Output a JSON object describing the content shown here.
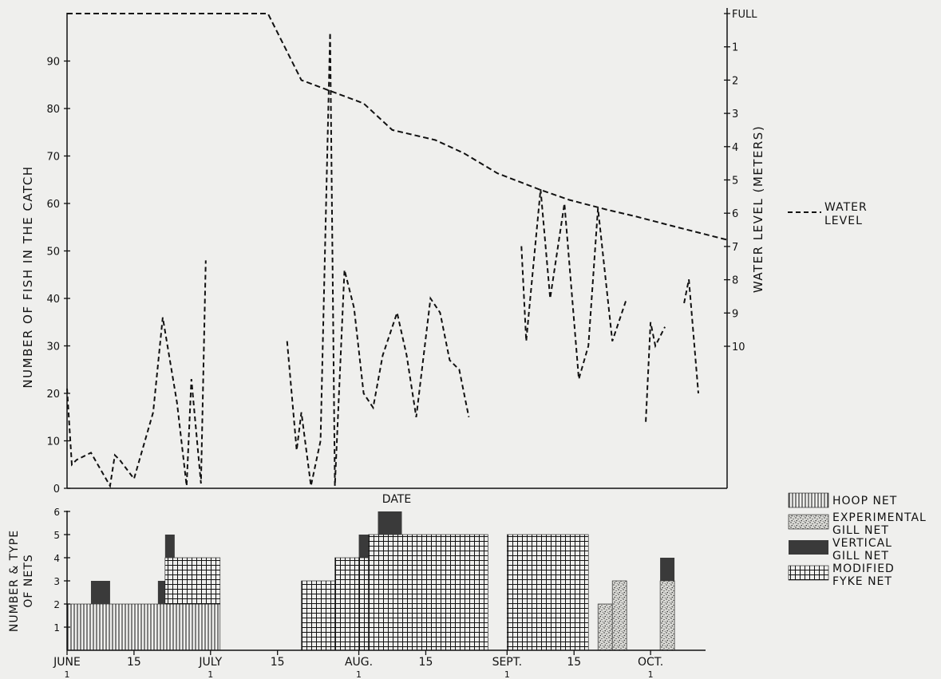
{
  "colors": {
    "background": "#efefed",
    "ink": "#111111",
    "gill_net_fill": "#3a3a3a",
    "experimental_fill": "#d9d9d5"
  },
  "chart_data": [
    {
      "type": "line",
      "title": "",
      "xlabel": "DATE",
      "ylabel": "NUMBER OF FISH IN THE CATCH",
      "ylabel_right": "WATER LEVEL (METERS)",
      "ylim": [
        0,
        100
      ],
      "yticks": [
        0,
        10,
        20,
        30,
        40,
        50,
        60,
        70,
        80,
        90
      ],
      "right_axis_ticks": [
        "FULL",
        "1",
        "2",
        "3",
        "4",
        "5",
        "6",
        "7",
        "8",
        "9",
        "10"
      ],
      "right_axis_range": [
        0,
        10
      ],
      "x_axis": {
        "unit": "day of season",
        "start": "JUNE 1",
        "range": [
          0,
          138
        ]
      },
      "legend": {
        "position": "right",
        "label_line1": "WATER",
        "label_line2": "LEVEL"
      },
      "catch_series": [
        [
          [
            0,
            21
          ],
          [
            1,
            5
          ],
          [
            2,
            6
          ],
          [
            5,
            7.5
          ],
          [
            7,
            4
          ],
          [
            9,
            0.5
          ],
          [
            10,
            7
          ],
          [
            11,
            6
          ],
          [
            14,
            2
          ],
          [
            18,
            16
          ],
          [
            20,
            36
          ],
          [
            23,
            18
          ],
          [
            25,
            0.5
          ],
          [
            26,
            23
          ],
          [
            28,
            1
          ],
          [
            29,
            48
          ]
        ],
        [
          [
            46,
            31
          ],
          [
            48,
            8
          ],
          [
            49,
            16
          ],
          [
            51,
            0.5
          ],
          [
            53,
            10
          ],
          [
            55,
            96
          ],
          [
            56,
            0.5
          ],
          [
            58,
            46
          ],
          [
            60,
            38
          ],
          [
            62,
            20
          ],
          [
            64,
            17
          ],
          [
            66,
            28
          ],
          [
            69,
            37
          ],
          [
            71,
            28
          ],
          [
            73,
            15
          ],
          [
            76,
            40
          ],
          [
            78,
            37
          ],
          [
            80,
            27
          ],
          [
            82,
            25
          ],
          [
            84,
            15
          ]
        ],
        [
          [
            95,
            51
          ],
          [
            96,
            31
          ],
          [
            99,
            63
          ],
          [
            101,
            40
          ],
          [
            104,
            60
          ],
          [
            107,
            23
          ],
          [
            109,
            30
          ],
          [
            111,
            59
          ],
          [
            114,
            31
          ],
          [
            117,
            40
          ]
        ],
        [
          [
            121,
            14
          ],
          [
            122,
            35
          ],
          [
            123,
            30
          ],
          [
            125,
            34
          ]
        ],
        [
          [
            129,
            39
          ],
          [
            130,
            44
          ],
          [
            132,
            20
          ]
        ]
      ],
      "water_level_m": [
        [
          0,
          0
        ],
        [
          42,
          0
        ],
        [
          49,
          2
        ],
        [
          62,
          2.7
        ],
        [
          68,
          3.5
        ],
        [
          77,
          3.8
        ],
        [
          83,
          4.2
        ],
        [
          90,
          4.8
        ],
        [
          99,
          5.3
        ],
        [
          105,
          5.6
        ],
        [
          113,
          5.9
        ],
        [
          119,
          6.1
        ],
        [
          127,
          6.4
        ],
        [
          138,
          6.8
        ]
      ]
    },
    {
      "type": "bar",
      "subtype": "stacked-time",
      "ylabel": "NUMBER & TYPE OF NETS",
      "ylim": [
        0,
        6
      ],
      "yticks": [
        1,
        2,
        3,
        4,
        5,
        6
      ],
      "xticks": [
        {
          "day": 0,
          "label": "JUNE",
          "sub": "1"
        },
        {
          "day": 14,
          "label": "15",
          "sub": ""
        },
        {
          "day": 30,
          "label": "JULY",
          "sub": "1"
        },
        {
          "day": 44,
          "label": "15",
          "sub": ""
        },
        {
          "day": 61,
          "label": "AUG.",
          "sub": "1"
        },
        {
          "day": 75,
          "label": "15",
          "sub": ""
        },
        {
          "day": 92,
          "label": "SEPT.",
          "sub": "1"
        },
        {
          "day": 106,
          "label": "15",
          "sub": ""
        },
        {
          "day": 122,
          "label": "OCT.",
          "sub": "1"
        }
      ],
      "blocks": [
        {
          "start": 0,
          "end": 32,
          "bottom": 0,
          "top": 2,
          "type": "hoop"
        },
        {
          "start": 5,
          "end": 9,
          "bottom": 2,
          "top": 3,
          "type": "vertical"
        },
        {
          "start": 19,
          "end": 20.5,
          "bottom": 2,
          "top": 3,
          "type": "vertical"
        },
        {
          "start": 20.5,
          "end": 32,
          "bottom": 2,
          "top": 4,
          "type": "fyke"
        },
        {
          "start": 20.5,
          "end": 22.5,
          "bottom": 4,
          "top": 5,
          "type": "vertical"
        },
        {
          "start": 49,
          "end": 56,
          "bottom": 0,
          "top": 3,
          "type": "fyke"
        },
        {
          "start": 56,
          "end": 61,
          "bottom": 0,
          "top": 4,
          "type": "fyke"
        },
        {
          "start": 61,
          "end": 63,
          "bottom": 4,
          "top": 5,
          "type": "vertical"
        },
        {
          "start": 61,
          "end": 63,
          "bottom": 0,
          "top": 4,
          "type": "fyke"
        },
        {
          "start": 63,
          "end": 88,
          "bottom": 0,
          "top": 5,
          "type": "fyke"
        },
        {
          "start": 65,
          "end": 70,
          "bottom": 5,
          "top": 6,
          "type": "vertical"
        },
        {
          "start": 92,
          "end": 109,
          "bottom": 0,
          "top": 5,
          "type": "fyke"
        },
        {
          "start": 111,
          "end": 114,
          "bottom": 0,
          "top": 2,
          "type": "experimental"
        },
        {
          "start": 114,
          "end": 117,
          "bottom": 0,
          "top": 3,
          "type": "experimental"
        },
        {
          "start": 124,
          "end": 127,
          "bottom": 0,
          "top": 3,
          "type": "experimental"
        },
        {
          "start": 124,
          "end": 127,
          "bottom": 3,
          "top": 4,
          "type": "vertical"
        }
      ],
      "legend": {
        "position": "right",
        "items": [
          {
            "type": "hoop",
            "line1": "HOOP NET",
            "line2": ""
          },
          {
            "type": "experimental",
            "line1": "EXPERIMENTAL",
            "line2": "GILL NET"
          },
          {
            "type": "vertical",
            "line1": "VERTICAL",
            "line2": "GILL NET"
          },
          {
            "type": "fyke",
            "line1": "MODIFIED",
            "line2": "FYKE NET"
          }
        ]
      },
      "ylabel_line1": "NUMBER & TYPE",
      "ylabel_line2": "OF NETS"
    }
  ]
}
